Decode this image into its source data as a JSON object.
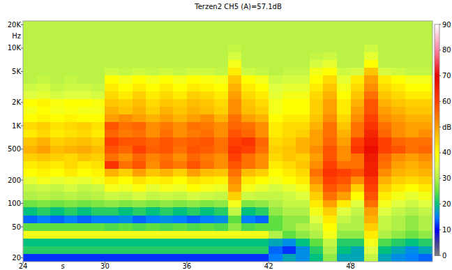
{
  "chart_data": {
    "type": "heatmap",
    "title": "Terzen2 CH5 (A)=57.1dB",
    "x_label": "s",
    "y_label": "Hz",
    "log": "y",
    "xlim": [
      24,
      54
    ],
    "ylim": [
      17.8,
      22400
    ],
    "xticks": [
      24,
      30,
      36,
      42,
      48
    ],
    "yticks": [
      20,
      50,
      100,
      200,
      500,
      {
        "value": 1000,
        "label": "1K"
      },
      {
        "value": 2000,
        "label": "2K"
      },
      {
        "value": 5000,
        "label": "5K"
      },
      {
        "value": 10000,
        "label": "10K"
      },
      {
        "value": 20000,
        "label": "20K"
      }
    ],
    "colorbar": {
      "range": [
        0,
        90
      ],
      "ticks": [
        0,
        10,
        20,
        30,
        40,
        {
          "value": 50,
          "label": "dB"
        },
        60,
        70,
        80,
        90
      ]
    },
    "x": [
      24,
      25,
      26,
      27,
      28,
      29,
      30,
      31,
      32,
      33,
      34,
      35,
      36,
      37,
      38,
      39,
      40,
      41,
      42,
      43,
      44,
      45,
      46,
      47,
      48,
      49,
      50,
      51,
      52,
      53
    ],
    "y": [
      20,
      25,
      31.5,
      40,
      50,
      63,
      80,
      100,
      125,
      160,
      200,
      250,
      315,
      400,
      500,
      630,
      800,
      1000,
      1250,
      1600,
      2000,
      2500,
      3150,
      4000,
      5000,
      6300,
      8000,
      10000,
      12500,
      16000,
      20000
    ],
    "values": [
      [
        12,
        12,
        12,
        12,
        12,
        12,
        12,
        12,
        12,
        12,
        12,
        12,
        12,
        12,
        12,
        12,
        12,
        12,
        15,
        18,
        16,
        20,
        28,
        18,
        18,
        32,
        18,
        16,
        15,
        14
      ],
      [
        22,
        22,
        22,
        22,
        22,
        22,
        22,
        22,
        22,
        22,
        22,
        22,
        22,
        22,
        22,
        22,
        22,
        22,
        14,
        12,
        16,
        22,
        30,
        20,
        18,
        35,
        20,
        18,
        16,
        18
      ],
      [
        20,
        20,
        20,
        20,
        20,
        20,
        20,
        20,
        20,
        20,
        20,
        20,
        20,
        20,
        20,
        20,
        20,
        20,
        18,
        16,
        20,
        25,
        32,
        22,
        22,
        38,
        24,
        22,
        20,
        22
      ],
      [
        38,
        38,
        38,
        38,
        38,
        38,
        38,
        38,
        38,
        38,
        38,
        38,
        38,
        38,
        38,
        38,
        38,
        38,
        30,
        25,
        28,
        30,
        38,
        28,
        28,
        42,
        30,
        28,
        26,
        28
      ],
      [
        25,
        25,
        25,
        25,
        25,
        25,
        24,
        25,
        24,
        25,
        24,
        25,
        24,
        25,
        24,
        28,
        24,
        25,
        25,
        28,
        30,
        32,
        40,
        30,
        30,
        45,
        32,
        30,
        28,
        30
      ],
      [
        14,
        15,
        14,
        15,
        14,
        15,
        15,
        16,
        14,
        15,
        16,
        15,
        14,
        15,
        16,
        25,
        15,
        14,
        25,
        28,
        28,
        35,
        42,
        32,
        30,
        48,
        32,
        30,
        28,
        30
      ],
      [
        20,
        22,
        20,
        22,
        20,
        22,
        22,
        20,
        22,
        20,
        22,
        20,
        22,
        20,
        22,
        32,
        20,
        22,
        28,
        30,
        30,
        38,
        45,
        35,
        32,
        50,
        35,
        32,
        30,
        32
      ],
      [
        26,
        27,
        26,
        27,
        26,
        27,
        28,
        27,
        28,
        27,
        28,
        27,
        28,
        27,
        28,
        38,
        27,
        28,
        30,
        32,
        32,
        42,
        50,
        42,
        35,
        55,
        38,
        35,
        33,
        35
      ],
      [
        30,
        31,
        30,
        31,
        30,
        31,
        33,
        32,
        34,
        32,
        33,
        32,
        34,
        33,
        32,
        45,
        33,
        32,
        32,
        33,
        35,
        45,
        55,
        50,
        40,
        58,
        42,
        38,
        36,
        38
      ],
      [
        32,
        33,
        32,
        34,
        32,
        33,
        38,
        37,
        39,
        36,
        38,
        37,
        40,
        38,
        37,
        50,
        38,
        36,
        34,
        36,
        38,
        48,
        58,
        55,
        45,
        60,
        45,
        42,
        40,
        42
      ],
      [
        36,
        38,
        36,
        37,
        36,
        38,
        42,
        40,
        43,
        41,
        42,
        40,
        43,
        42,
        41,
        52,
        42,
        40,
        38,
        40,
        42,
        52,
        60,
        58,
        52,
        62,
        48,
        45,
        44,
        45
      ],
      [
        40,
        41,
        40,
        42,
        40,
        41,
        48,
        45,
        50,
        46,
        48,
        45,
        50,
        47,
        46,
        55,
        47,
        45,
        40,
        42,
        44,
        55,
        62,
        60,
        58,
        65,
        52,
        48,
        47,
        48
      ],
      [
        42,
        43,
        42,
        44,
        42,
        43,
        62,
        55,
        58,
        52,
        56,
        54,
        58,
        55,
        52,
        58,
        55,
        52,
        42,
        44,
        46,
        52,
        60,
        55,
        55,
        65,
        55,
        50,
        48,
        50
      ],
      [
        45,
        46,
        45,
        44,
        46,
        45,
        55,
        52,
        56,
        53,
        55,
        52,
        56,
        54,
        52,
        60,
        55,
        52,
        44,
        46,
        45,
        50,
        58,
        52,
        55,
        66,
        56,
        52,
        50,
        52
      ],
      [
        48,
        50,
        47,
        48,
        49,
        47,
        58,
        56,
        60,
        57,
        58,
        55,
        58,
        57,
        55,
        62,
        60,
        55,
        45,
        46,
        48,
        52,
        58,
        52,
        62,
        68,
        60,
        58,
        55,
        56
      ],
      [
        46,
        48,
        45,
        46,
        47,
        45,
        60,
        58,
        58,
        56,
        58,
        56,
        57,
        58,
        55,
        60,
        62,
        56,
        44,
        45,
        48,
        50,
        56,
        50,
        60,
        66,
        60,
        56,
        55,
        55
      ],
      [
        42,
        44,
        42,
        43,
        44,
        42,
        56,
        54,
        55,
        52,
        55,
        52,
        54,
        55,
        52,
        58,
        56,
        52,
        42,
        44,
        45,
        50,
        55,
        48,
        55,
        64,
        56,
        52,
        50,
        52
      ],
      [
        44,
        45,
        43,
        44,
        45,
        43,
        58,
        55,
        56,
        52,
        54,
        52,
        55,
        54,
        52,
        56,
        55,
        52,
        42,
        44,
        44,
        48,
        55,
        46,
        55,
        62,
        55,
        52,
        50,
        50
      ],
      [
        40,
        41,
        40,
        41,
        40,
        40,
        50,
        52,
        50,
        48,
        50,
        48,
        50,
        52,
        48,
        55,
        50,
        48,
        40,
        42,
        42,
        46,
        52,
        44,
        52,
        60,
        52,
        50,
        48,
        48
      ],
      [
        38,
        40,
        38,
        39,
        38,
        38,
        48,
        46,
        48,
        45,
        48,
        46,
        48,
        47,
        45,
        52,
        47,
        45,
        38,
        40,
        40,
        45,
        50,
        42,
        50,
        58,
        50,
        48,
        46,
        46
      ],
      [
        40,
        41,
        39,
        40,
        40,
        39,
        46,
        45,
        47,
        44,
        46,
        45,
        47,
        46,
        44,
        52,
        46,
        44,
        38,
        40,
        40,
        45,
        50,
        42,
        48,
        58,
        48,
        46,
        45,
        45
      ],
      [
        35,
        36,
        34,
        35,
        35,
        34,
        44,
        42,
        45,
        42,
        44,
        42,
        45,
        44,
        42,
        50,
        44,
        42,
        36,
        38,
        38,
        44,
        48,
        40,
        46,
        55,
        46,
        44,
        42,
        42
      ],
      [
        33,
        34,
        32,
        33,
        33,
        32,
        42,
        40,
        42,
        40,
        42,
        40,
        42,
        41,
        40,
        48,
        42,
        40,
        35,
        36,
        36,
        42,
        46,
        38,
        44,
        52,
        44,
        42,
        40,
        40
      ],
      [
        31,
        32,
        31,
        32,
        31,
        31,
        40,
        38,
        40,
        38,
        40,
        38,
        40,
        39,
        38,
        46,
        40,
        38,
        33,
        34,
        34,
        40,
        44,
        36,
        42,
        50,
        42,
        40,
        38,
        38
      ],
      [
        31,
        31,
        31,
        31,
        31,
        31,
        33,
        32,
        33,
        32,
        33,
        32,
        33,
        33,
        32,
        42,
        33,
        32,
        31,
        32,
        32,
        38,
        40,
        33,
        34,
        46,
        34,
        33,
        32,
        32
      ],
      [
        31,
        31,
        31,
        31,
        31,
        31,
        31,
        31,
        31,
        31,
        31,
        31,
        31,
        31,
        31,
        38,
        31,
        31,
        31,
        31,
        31,
        34,
        36,
        31,
        31,
        40,
        31,
        31,
        31,
        31
      ],
      [
        31,
        31,
        31,
        31,
        31,
        31,
        31,
        31,
        31,
        31,
        31,
        31,
        31,
        31,
        31,
        34,
        31,
        31,
        31,
        31,
        31,
        32,
        33,
        31,
        31,
        36,
        31,
        31,
        31,
        31
      ],
      [
        31,
        31,
        31,
        31,
        31,
        31,
        31,
        31,
        31,
        31,
        31,
        31,
        31,
        31,
        31,
        32,
        31,
        31,
        31,
        31,
        31,
        31,
        31,
        31,
        31,
        33,
        31,
        31,
        31,
        31
      ],
      [
        31,
        31,
        31,
        31,
        31,
        31,
        31,
        31,
        31,
        31,
        31,
        31,
        31,
        31,
        31,
        31,
        31,
        31,
        31,
        31,
        31,
        31,
        31,
        31,
        31,
        31,
        31,
        31,
        31,
        31
      ],
      [
        31,
        31,
        31,
        31,
        31,
        31,
        31,
        31,
        31,
        31,
        31,
        31,
        31,
        31,
        31,
        31,
        31,
        31,
        31,
        31,
        31,
        31,
        31,
        31,
        31,
        31,
        31,
        31,
        31,
        31
      ],
      [
        31,
        31,
        31,
        31,
        31,
        31,
        31,
        31,
        31,
        31,
        31,
        31,
        31,
        31,
        31,
        31,
        31,
        31,
        31,
        31,
        31,
        31,
        31,
        31,
        31,
        31,
        31,
        31,
        31,
        31
      ]
    ]
  }
}
